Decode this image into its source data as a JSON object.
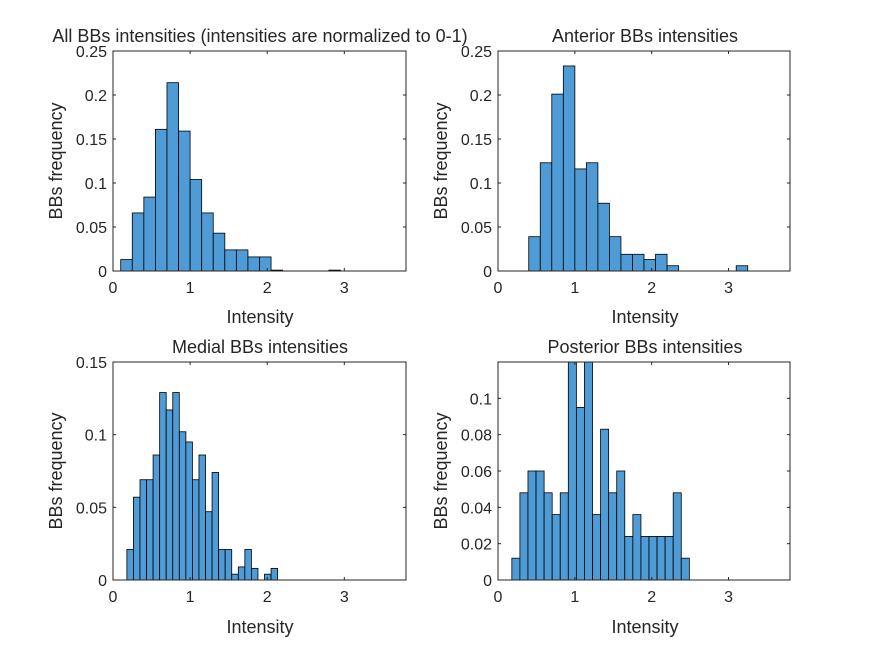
{
  "chart_data": [
    {
      "type": "bar",
      "title": "All BBs intensities (intensities are normalized to 0-1)",
      "xlabel": "Intensity",
      "ylabel": "BBs frequency",
      "xlim": [
        0,
        3.8
      ],
      "ylim": [
        0,
        0.25
      ],
      "xticks": [
        "0",
        "1",
        "2",
        "3"
      ],
      "yticks": [
        "0",
        "0.05",
        "0.1",
        "0.15",
        "0.2",
        "0.25"
      ],
      "bin_width": 0.15,
      "bin_start": 0.1,
      "values": [
        0.013,
        0.066,
        0.084,
        0.161,
        0.214,
        0.159,
        0.104,
        0.066,
        0.043,
        0.024,
        0.024,
        0.016,
        0.016,
        0.001,
        0,
        0,
        0,
        0,
        0.001,
        0
      ]
    },
    {
      "type": "bar",
      "title": "Anterior BBs intensities",
      "xlabel": "Intensity",
      "ylabel": "BBs frequency",
      "xlim": [
        0,
        3.8
      ],
      "ylim": [
        0,
        0.25
      ],
      "xticks": [
        "0",
        "1",
        "2",
        "3"
      ],
      "yticks": [
        "0",
        "0.05",
        "0.1",
        "0.15",
        "0.2",
        "0.25"
      ],
      "bin_width": 0.15,
      "bin_start": 0.4,
      "values": [
        0.039,
        0.123,
        0.201,
        0.233,
        0.116,
        0.123,
        0.077,
        0.039,
        0.019,
        0.019,
        0.013,
        0.019,
        0.006,
        0,
        0,
        0,
        0,
        0,
        0.006
      ]
    },
    {
      "type": "bar",
      "title": "Medial BBs intensities",
      "xlabel": "Intensity",
      "ylabel": "BBs frequency",
      "xlim": [
        0,
        3.8
      ],
      "ylim": [
        0,
        0.15
      ],
      "xticks": [
        "0",
        "1",
        "2",
        "3"
      ],
      "yticks": [
        "0",
        "0.05",
        "0.1",
        "0.15"
      ],
      "bin_width": 0.085,
      "bin_start": 0.18,
      "values": [
        0.021,
        0.057,
        0.069,
        0.069,
        0.086,
        0.129,
        0.117,
        0.129,
        0.102,
        0.095,
        0.069,
        0.086,
        0.047,
        0.074,
        0.021,
        0.021,
        0.004,
        0.009,
        0.021,
        0.008,
        0,
        0.004,
        0.008
      ]
    },
    {
      "type": "bar",
      "title": "Posterior BBs intensities",
      "xlabel": "Intensity",
      "ylabel": "BBs frequency",
      "xlim": [
        0,
        3.8
      ],
      "ylim": [
        0,
        0.12
      ],
      "xticks": [
        "0",
        "1",
        "2",
        "3"
      ],
      "yticks": [
        "0",
        "0.02",
        "0.04",
        "0.06",
        "0.08",
        "0.1"
      ],
      "bin_width": 0.105,
      "bin_start": 0.18,
      "values": [
        0.012,
        0.048,
        0.06,
        0.06,
        0.048,
        0.036,
        0.048,
        0.12,
        0.095,
        0.12,
        0.036,
        0.083,
        0.048,
        0.06,
        0.024,
        0.036,
        0.024,
        0.024,
        0.024,
        0.024,
        0.048,
        0.012
      ]
    }
  ],
  "colors": {
    "bar_fill": "#4f9bd6",
    "bar_edge": "#000000",
    "axis": "#262626"
  }
}
